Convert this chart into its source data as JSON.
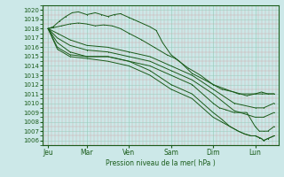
{
  "xlabel": "Pression niveau de la mer( hPa )",
  "bg_color": "#cce8e8",
  "line_color": "#1a5c1a",
  "border_color": "#1a5c1a",
  "grid_major_color": "#aad4cc",
  "grid_minor_color": "#ddaaaa",
  "ylim": [
    1005.5,
    1020.5
  ],
  "yticks": [
    1006,
    1007,
    1008,
    1009,
    1010,
    1011,
    1012,
    1013,
    1014,
    1015,
    1016,
    1017,
    1018,
    1019,
    1020
  ],
  "xtick_labels": [
    "Jeu",
    "Mar",
    "Ven",
    "Sam",
    "Dim",
    "Lun"
  ],
  "xtick_positions": [
    0.08,
    1.0,
    2.0,
    3.0,
    4.0,
    5.0
  ],
  "xlim": [
    -0.05,
    5.55
  ],
  "lines": [
    {
      "x": [
        0.08,
        0.2,
        0.35,
        0.5,
        0.65,
        0.8,
        1.0,
        1.1,
        1.2,
        1.35,
        1.5,
        1.65,
        1.8,
        2.0,
        2.1,
        2.2,
        2.35,
        2.5,
        2.65,
        2.8,
        3.0,
        3.2,
        3.5,
        3.8,
        4.0,
        4.2,
        4.5,
        4.8,
        5.0,
        5.15,
        5.3,
        5.45
      ],
      "y": [
        1018,
        1018.2,
        1018.8,
        1019.3,
        1019.7,
        1019.8,
        1019.5,
        1019.6,
        1019.7,
        1019.5,
        1019.3,
        1019.5,
        1019.6,
        1019.2,
        1019.0,
        1018.8,
        1018.5,
        1018.2,
        1017.8,
        1016.5,
        1015.2,
        1014.5,
        1013.2,
        1012.5,
        1012.0,
        1011.5,
        1011.2,
        1010.8,
        1011.0,
        1011.2,
        1011.0,
        1011.0
      ]
    },
    {
      "x": [
        0.08,
        0.2,
        0.4,
        0.6,
        0.8,
        1.0,
        1.2,
        1.4,
        1.6,
        1.8,
        2.0,
        2.3,
        2.6,
        2.9,
        3.1,
        3.4,
        3.7,
        4.0,
        4.3,
        4.6,
        5.0,
        5.15,
        5.3,
        5.45
      ],
      "y": [
        1018,
        1018.1,
        1018.3,
        1018.5,
        1018.6,
        1018.5,
        1018.3,
        1018.4,
        1018.3,
        1018.0,
        1017.5,
        1016.8,
        1016.0,
        1015.2,
        1014.8,
        1013.8,
        1013.0,
        1012.0,
        1011.5,
        1011.0,
        1011.0,
        1011.0,
        1011.0,
        1011.0
      ]
    },
    {
      "x": [
        0.08,
        0.3,
        0.6,
        1.0,
        1.5,
        2.0,
        2.5,
        3.0,
        3.5,
        4.0,
        4.5,
        5.0,
        5.2,
        5.45
      ],
      "y": [
        1018,
        1017.5,
        1016.8,
        1016.2,
        1016.0,
        1015.5,
        1015.0,
        1014.0,
        1013.0,
        1011.5,
        1010.0,
        1009.5,
        1009.5,
        1010.0
      ]
    },
    {
      "x": [
        0.08,
        0.3,
        0.6,
        1.0,
        1.5,
        2.0,
        2.5,
        3.0,
        3.5,
        4.0,
        4.5,
        5.0,
        5.2,
        5.45
      ],
      "y": [
        1018,
        1017.0,
        1016.2,
        1015.7,
        1015.5,
        1015.0,
        1014.5,
        1013.5,
        1012.5,
        1011.0,
        1009.2,
        1008.5,
        1008.5,
        1009.0
      ]
    },
    {
      "x": [
        0.08,
        0.3,
        0.6,
        1.0,
        1.5,
        2.0,
        2.5,
        3.0,
        3.5,
        4.0,
        4.15,
        4.3,
        4.5,
        4.65,
        4.8,
        5.0,
        5.1,
        5.2,
        5.3,
        5.45
      ],
      "y": [
        1018,
        1016.5,
        1015.5,
        1015.0,
        1015.0,
        1014.5,
        1014.0,
        1013.0,
        1012.0,
        1010.0,
        1009.5,
        1009.3,
        1009.0,
        1009.0,
        1009.0,
        1007.5,
        1007.0,
        1007.0,
        1007.0,
        1007.5
      ]
    },
    {
      "x": [
        0.08,
        0.3,
        0.6,
        1.0,
        1.5,
        2.0,
        2.5,
        3.0,
        3.5,
        4.0,
        4.2,
        4.4,
        4.6,
        4.75,
        4.9,
        5.0,
        5.1,
        5.15,
        5.2,
        5.3,
        5.45
      ],
      "y": [
        1018,
        1016.0,
        1015.2,
        1015.0,
        1015.0,
        1014.5,
        1013.5,
        1012.0,
        1011.0,
        1009.0,
        1008.3,
        1007.5,
        1007.0,
        1006.7,
        1006.5,
        1006.5,
        1006.3,
        1006.2,
        1006.0,
        1006.2,
        1006.5
      ]
    },
    {
      "x": [
        0.08,
        0.3,
        0.6,
        1.0,
        1.5,
        2.0,
        2.5,
        3.0,
        3.5,
        4.0,
        4.2,
        4.4,
        4.6,
        4.75,
        4.9,
        5.0,
        5.1,
        5.15,
        5.2,
        5.3,
        5.45
      ],
      "y": [
        1018,
        1015.8,
        1015.0,
        1014.8,
        1014.5,
        1014.0,
        1013.0,
        1011.5,
        1010.5,
        1008.5,
        1008.0,
        1007.5,
        1007.0,
        1006.7,
        1006.5,
        1006.5,
        1006.3,
        1006.2,
        1006.0,
        1006.2,
        1006.5
      ]
    }
  ]
}
